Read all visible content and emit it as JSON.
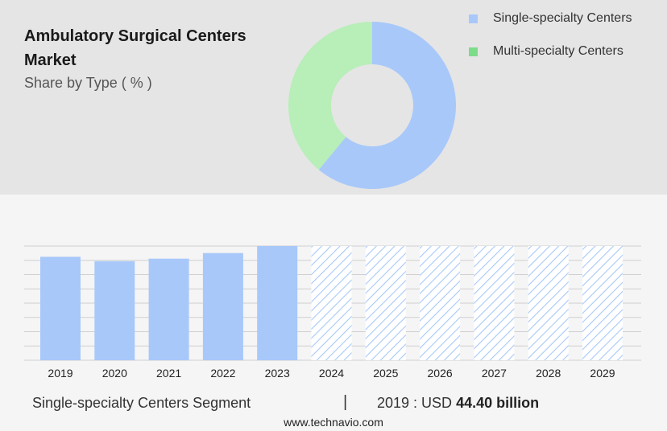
{
  "header": {
    "title": "Ambulatory Surgical Centers Market",
    "subtitle": "Share by Type ( % )"
  },
  "colors": {
    "single": "#a8c8fa",
    "multi": "#b8eeb8",
    "legend_multi": "#7ddc8a"
  },
  "legend": [
    {
      "label": "Single-specialty Centers",
      "color": "#a8c8fa"
    },
    {
      "label": "Multi-specialty Centers",
      "color": "#7ddc8a"
    }
  ],
  "chart_data": [
    {
      "type": "pie",
      "donut": true,
      "series": [
        {
          "name": "Single-specialty Centers",
          "value": 61,
          "color": "#a8c8fa"
        },
        {
          "name": "Multi-specialty Centers",
          "value": 39,
          "color": "#b8eeb8"
        }
      ]
    },
    {
      "type": "bar",
      "categories": [
        "2019",
        "2020",
        "2021",
        "2022",
        "2023",
        "2024",
        "2025",
        "2026",
        "2027",
        "2028",
        "2029"
      ],
      "values": [
        44.4,
        42.5,
        43.6,
        46.0,
        49.0,
        49.0,
        49.0,
        49.0,
        49.0,
        49.0,
        49.0
      ],
      "forecast_from": "2024",
      "ylim": [
        0,
        49
      ],
      "grid": true,
      "color": "#a8c8fa"
    }
  ],
  "footer": {
    "segment": "Single-specialty Centers Segment",
    "separator": "|",
    "value_prefix": "2019 : USD",
    "value": "44.40 billion"
  },
  "source": "www.technavio.com"
}
